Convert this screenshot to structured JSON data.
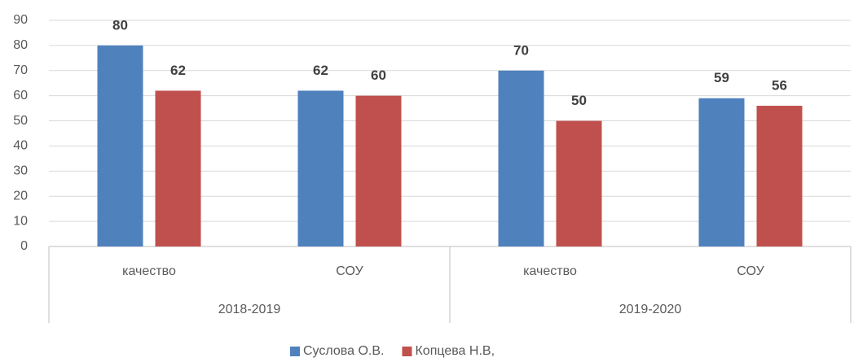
{
  "chart_data": {
    "type": "bar",
    "categories": [
      "качество",
      "СОУ",
      "качество",
      "СОУ"
    ],
    "category_groups": [
      "2018-2019",
      "2019-2020"
    ],
    "series": [
      {
        "name": "Суслова О.В.",
        "color": "#4f81bd",
        "values": [
          80,
          62,
          70,
          59
        ]
      },
      {
        "name": "Копцева Н.В,",
        "color": "#c0504d",
        "values": [
          62,
          60,
          50,
          56
        ]
      }
    ],
    "ylim": [
      0,
      90
    ],
    "yticks": [
      0,
      10,
      20,
      30,
      40,
      50,
      60,
      70,
      80,
      90
    ],
    "grid": true,
    "legend": "bottom"
  }
}
